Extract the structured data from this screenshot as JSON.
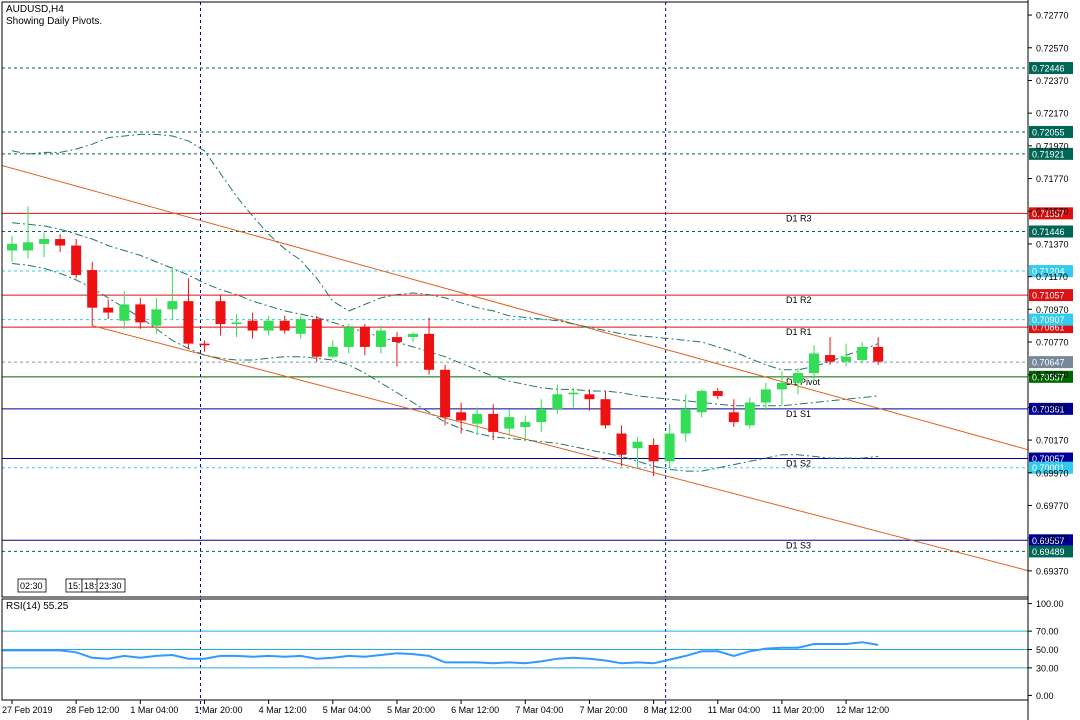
{
  "header": {
    "symbol_line": "AUDUSD,H4",
    "subtitle": "Showing Daily Pivots."
  },
  "colors": {
    "bull": "#33dd55",
    "bear": "#ee1111",
    "grid": "#000000",
    "red_level": "#dd1111",
    "green_level": "#006600",
    "blue_level": "#000099",
    "dotted_level": "#006655",
    "cyan_level": "#33ccee",
    "channel": "#e06020",
    "bands": "#227766",
    "rsi_line": "#3399ff",
    "rsi_levels": "#22aadd",
    "vline": "#0000aa"
  },
  "time_badges": [
    "02:30",
    "15:",
    "18:",
    "23:30"
  ],
  "chart_data": [
    {
      "type": "candlestick",
      "title": "AUDUSD,H4",
      "ylim": [
        0.6921,
        0.7285
      ],
      "price_ticks": [
        "0.72770",
        "0.72570",
        "0.72370",
        "0.72170",
        "0.71970",
        "0.71770",
        "0.71570",
        "0.71370",
        "0.71170",
        "0.70970",
        "0.70770",
        "0.70570",
        "0.70370",
        "0.70170",
        "0.69970",
        "0.69770",
        "0.69570",
        "0.69370"
      ],
      "extra_tick": "0.71370",
      "x_labels": [
        "27 Feb 2019",
        "28 Feb 12:00",
        "1 Mar 04:00",
        "1 Mar 20:00",
        "4 Mar 12:00",
        "5 Mar 04:00",
        "5 Mar 20:00",
        "6 Mar 12:00",
        "7 Mar 04:00",
        "7 Mar 20:00",
        "8 Mar 12:00",
        "11 Mar 04:00",
        "11 Mar 20:00",
        "12 Mar 12:00"
      ],
      "candles": [
        {
          "o": 0.7133,
          "h": 0.7142,
          "l": 0.7126,
          "c": 0.7137
        },
        {
          "o": 0.7133,
          "h": 0.716,
          "l": 0.7128,
          "c": 0.7138
        },
        {
          "o": 0.7137,
          "h": 0.7144,
          "l": 0.7129,
          "c": 0.714
        },
        {
          "o": 0.714,
          "h": 0.7143,
          "l": 0.7132,
          "c": 0.7136
        },
        {
          "o": 0.7136,
          "h": 0.714,
          "l": 0.7116,
          "c": 0.7118
        },
        {
          "o": 0.7121,
          "h": 0.7126,
          "l": 0.7087,
          "c": 0.7098
        },
        {
          "o": 0.7098,
          "h": 0.7103,
          "l": 0.7091,
          "c": 0.7095
        },
        {
          "o": 0.709,
          "h": 0.7108,
          "l": 0.7085,
          "c": 0.71
        },
        {
          "o": 0.71,
          "h": 0.7104,
          "l": 0.7085,
          "c": 0.7089
        },
        {
          "o": 0.7087,
          "h": 0.7104,
          "l": 0.7082,
          "c": 0.7097
        },
        {
          "o": 0.7097,
          "h": 0.7123,
          "l": 0.7091,
          "c": 0.7102
        },
        {
          "o": 0.7102,
          "h": 0.7116,
          "l": 0.7073,
          "c": 0.7076
        },
        {
          "o": 0.7076,
          "h": 0.7078,
          "l": 0.7071,
          "c": 0.7075
        },
        {
          "o": 0.7102,
          "h": 0.7106,
          "l": 0.7081,
          "c": 0.7088
        },
        {
          "o": 0.7088,
          "h": 0.7094,
          "l": 0.708,
          "c": 0.7089
        },
        {
          "o": 0.709,
          "h": 0.7095,
          "l": 0.7079,
          "c": 0.7084
        },
        {
          "o": 0.7084,
          "h": 0.7093,
          "l": 0.7081,
          "c": 0.709
        },
        {
          "o": 0.709,
          "h": 0.7093,
          "l": 0.7082,
          "c": 0.7084
        },
        {
          "o": 0.7082,
          "h": 0.7093,
          "l": 0.7079,
          "c": 0.7091
        },
        {
          "o": 0.7091,
          "h": 0.7093,
          "l": 0.7065,
          "c": 0.7068
        },
        {
          "o": 0.7068,
          "h": 0.7078,
          "l": 0.7067,
          "c": 0.7074
        },
        {
          "o": 0.7074,
          "h": 0.7088,
          "l": 0.707,
          "c": 0.7086
        },
        {
          "o": 0.7086,
          "h": 0.7088,
          "l": 0.7069,
          "c": 0.7074
        },
        {
          "o": 0.7074,
          "h": 0.7087,
          "l": 0.707,
          "c": 0.7084
        },
        {
          "o": 0.708,
          "h": 0.7083,
          "l": 0.7062,
          "c": 0.7077
        },
        {
          "o": 0.708,
          "h": 0.7083,
          "l": 0.7077,
          "c": 0.7082
        },
        {
          "o": 0.7082,
          "h": 0.7092,
          "l": 0.7057,
          "c": 0.706
        },
        {
          "o": 0.706,
          "h": 0.7063,
          "l": 0.7026,
          "c": 0.7031
        },
        {
          "o": 0.7034,
          "h": 0.704,
          "l": 0.7021,
          "c": 0.7029
        },
        {
          "o": 0.7027,
          "h": 0.7037,
          "l": 0.702,
          "c": 0.7033
        },
        {
          "o": 0.7033,
          "h": 0.7039,
          "l": 0.7017,
          "c": 0.7022
        },
        {
          "o": 0.7024,
          "h": 0.7036,
          "l": 0.702,
          "c": 0.7031
        },
        {
          "o": 0.7025,
          "h": 0.7032,
          "l": 0.7017,
          "c": 0.7028
        },
        {
          "o": 0.7028,
          "h": 0.7042,
          "l": 0.7022,
          "c": 0.7036
        },
        {
          "o": 0.7036,
          "h": 0.7051,
          "l": 0.7033,
          "c": 0.7045
        },
        {
          "o": 0.7045,
          "h": 0.7049,
          "l": 0.7037,
          "c": 0.7046
        },
        {
          "o": 0.7045,
          "h": 0.7048,
          "l": 0.7035,
          "c": 0.7042
        },
        {
          "o": 0.7042,
          "h": 0.7047,
          "l": 0.7024,
          "c": 0.7026
        },
        {
          "o": 0.7021,
          "h": 0.7026,
          "l": 0.7001,
          "c": 0.7008
        },
        {
          "o": 0.7012,
          "h": 0.7019,
          "l": 0.7,
          "c": 0.7016
        },
        {
          "o": 0.7014,
          "h": 0.7018,
          "l": 0.6995,
          "c": 0.7004
        },
        {
          "o": 0.7004,
          "h": 0.7027,
          "l": 0.7,
          "c": 0.7021
        },
        {
          "o": 0.7021,
          "h": 0.7045,
          "l": 0.7016,
          "c": 0.7036
        },
        {
          "o": 0.7034,
          "h": 0.7048,
          "l": 0.7031,
          "c": 0.7047
        },
        {
          "o": 0.7047,
          "h": 0.7049,
          "l": 0.7042,
          "c": 0.7044
        },
        {
          "o": 0.7034,
          "h": 0.7042,
          "l": 0.7025,
          "c": 0.7028
        },
        {
          "o": 0.7026,
          "h": 0.7043,
          "l": 0.7024,
          "c": 0.704
        },
        {
          "o": 0.704,
          "h": 0.7052,
          "l": 0.7035,
          "c": 0.7048
        },
        {
          "o": 0.7048,
          "h": 0.7059,
          "l": 0.7038,
          "c": 0.7052
        },
        {
          "o": 0.7052,
          "h": 0.7061,
          "l": 0.7045,
          "c": 0.7058
        },
        {
          "o": 0.7058,
          "h": 0.7075,
          "l": 0.7053,
          "c": 0.707
        },
        {
          "o": 0.7069,
          "h": 0.708,
          "l": 0.7063,
          "c": 0.7065
        },
        {
          "o": 0.7065,
          "h": 0.7076,
          "l": 0.7062,
          "c": 0.7068
        },
        {
          "o": 0.7066,
          "h": 0.7077,
          "l": 0.7064,
          "c": 0.7074
        },
        {
          "o": 0.7074,
          "h": 0.708,
          "l": 0.7063,
          "c": 0.7065
        }
      ],
      "upper_band": [
        0.7194,
        0.7192,
        0.7193,
        0.7193,
        0.7195,
        0.7198,
        0.7202,
        0.7203,
        0.7204,
        0.7204,
        0.7203,
        0.72,
        0.7194,
        0.718,
        0.7166,
        0.7154,
        0.7143,
        0.7134,
        0.7127,
        0.7116,
        0.7102,
        0.7096,
        0.71,
        0.7104,
        0.7106,
        0.7107,
        0.7106,
        0.7104,
        0.7101,
        0.7098,
        0.7096,
        0.7093,
        0.7092,
        0.7091,
        0.709,
        0.7088,
        0.7086,
        0.7084,
        0.7082,
        0.7081,
        0.708,
        0.7079,
        0.7078,
        0.7077,
        0.7074,
        0.7071,
        0.7067,
        0.7063,
        0.706,
        0.706,
        0.7062,
        0.7065,
        0.7069,
        0.7072,
        0.7076
      ],
      "middle_band": [
        0.715,
        0.7149,
        0.7148,
        0.7146,
        0.7143,
        0.714,
        0.7136,
        0.7133,
        0.713,
        0.7126,
        0.7122,
        0.7118,
        0.7113,
        0.7109,
        0.7106,
        0.7102,
        0.7099,
        0.7096,
        0.7094,
        0.7092,
        0.7089,
        0.7086,
        0.7083,
        0.708,
        0.7077,
        0.7074,
        0.7071,
        0.7068,
        0.7064,
        0.706,
        0.7056,
        0.7053,
        0.7051,
        0.7049,
        0.7048,
        0.7048,
        0.7047,
        0.7047,
        0.7046,
        0.7044,
        0.7043,
        0.7042,
        0.7041,
        0.704,
        0.7039,
        0.7038,
        0.7038,
        0.7038,
        0.7038,
        0.7039,
        0.704,
        0.7041,
        0.7042,
        0.7043,
        0.7044
      ],
      "lower_band": [
        0.7125,
        0.7124,
        0.7122,
        0.7119,
        0.7115,
        0.711,
        0.7104,
        0.7098,
        0.7092,
        0.7085,
        0.7078,
        0.7073,
        0.7069,
        0.7067,
        0.7066,
        0.7066,
        0.7067,
        0.7068,
        0.7068,
        0.7067,
        0.7066,
        0.7063,
        0.7058,
        0.7052,
        0.7046,
        0.704,
        0.7034,
        0.7028,
        0.7024,
        0.7021,
        0.7019,
        0.7018,
        0.7017,
        0.7016,
        0.7015,
        0.7013,
        0.7011,
        0.7009,
        0.7007,
        0.7004,
        0.7001,
        0.6999,
        0.6998,
        0.6998,
        0.7,
        0.7002,
        0.7004,
        0.7006,
        0.7008,
        0.7008,
        0.7007,
        0.7006,
        0.7006,
        0.7006,
        0.7007
      ],
      "channel_lines": [
        {
          "x1_index": -1,
          "y1": 0.7186,
          "x2_index": 70,
          "y2": 0.6993
        },
        {
          "x1_index": 5,
          "y1": 0.7087,
          "x2_index": 70,
          "y2": 0.692
        }
      ],
      "pivot_levels": [
        {
          "name": "D1 R3",
          "value": 0.71557,
          "label": "0.71557",
          "style": "red"
        },
        {
          "name": "D1 R2",
          "value": 0.71057,
          "label": "0.71057",
          "style": "red"
        },
        {
          "name": "D1 R1",
          "value": 0.70861,
          "label": "0.70861",
          "style": "red"
        },
        {
          "name": "D1 Pivot",
          "value": 0.70557,
          "label": "0.70557",
          "style": "green"
        },
        {
          "name": "D1 S1",
          "value": 0.70361,
          "label": "0.70361",
          "style": "blue"
        },
        {
          "name": "D1 S2",
          "value": 0.70057,
          "label": "0.70057",
          "style": "blue"
        },
        {
          "name": "D1 S3",
          "value": 0.69557,
          "label": "0.69557",
          "style": "blue"
        }
      ],
      "dotted_levels": [
        {
          "value": 0.72446,
          "label": "0.72446",
          "style": "teal"
        },
        {
          "value": 0.72055,
          "label": "0.72055",
          "style": "teal"
        },
        {
          "value": 0.71921,
          "label": "0.71921",
          "style": "teal"
        },
        {
          "value": 0.71446,
          "label": "0.71446",
          "style": "teal"
        },
        {
          "value": 0.71204,
          "label": "0.71204",
          "style": "cyan"
        },
        {
          "value": 0.70907,
          "label": "0.70907",
          "style": "cyan"
        },
        {
          "value": 0.70647,
          "label": "0.70647",
          "style": "gray"
        },
        {
          "value": 0.70001,
          "label": "0.70001",
          "style": "cyan"
        },
        {
          "value": 0.69489,
          "label": "0.69489",
          "style": "teal"
        }
      ],
      "vertical_lines_at_index": [
        12,
        41
      ]
    },
    {
      "type": "line",
      "title": "RSI(14) 55.25",
      "ylim": [
        -5,
        105
      ],
      "y_ticks": [
        "100.00",
        "70.00",
        "50.00",
        "30.00",
        "0.00"
      ],
      "levels": [
        70,
        50,
        30
      ],
      "values": [
        49,
        49,
        49,
        49,
        47,
        41,
        40,
        43,
        41,
        43,
        44,
        40,
        40,
        43,
        43,
        42,
        43,
        42,
        43,
        40,
        41,
        43,
        42,
        44,
        46,
        45,
        43,
        36,
        36,
        36,
        35,
        36,
        35,
        37,
        40,
        41,
        40,
        38,
        35,
        36,
        35,
        39,
        43,
        48,
        48,
        43,
        48,
        51,
        52,
        52,
        56,
        56,
        56,
        58,
        55
      ]
    }
  ]
}
